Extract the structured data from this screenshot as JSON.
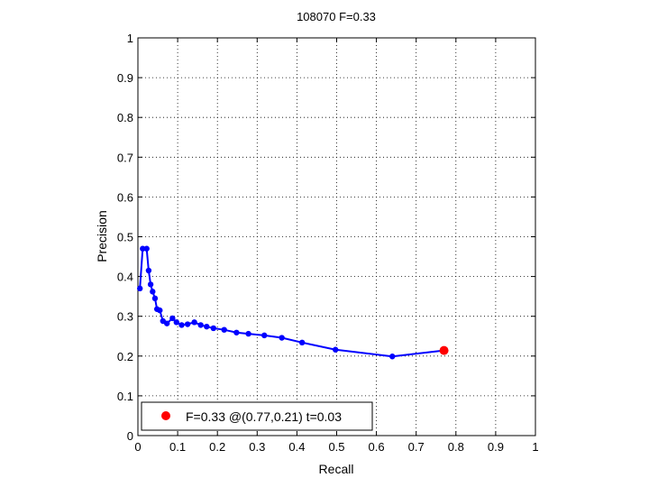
{
  "chart_data": {
    "type": "line",
    "title": "108070 F=0.33",
    "xlabel": "Recall",
    "ylabel": "Precision",
    "xlim": [
      0,
      1
    ],
    "ylim": [
      0,
      1
    ],
    "grid": true,
    "x_ticks": [
      "0",
      "0.1",
      "0.2",
      "0.3",
      "0.4",
      "0.5",
      "0.6",
      "0.7",
      "0.8",
      "0.9",
      "1"
    ],
    "y_ticks": [
      "0",
      "0.1",
      "0.2",
      "0.3",
      "0.4",
      "0.5",
      "0.6",
      "0.7",
      "0.8",
      "0.9",
      "1"
    ],
    "series": [
      {
        "color": "#0000ff",
        "points": [
          [
            0.005,
            0.37
          ],
          [
            0.012,
            0.47
          ],
          [
            0.022,
            0.47
          ],
          [
            0.027,
            0.415
          ],
          [
            0.032,
            0.38
          ],
          [
            0.037,
            0.362
          ],
          [
            0.043,
            0.345
          ],
          [
            0.048,
            0.318
          ],
          [
            0.055,
            0.315
          ],
          [
            0.063,
            0.288
          ],
          [
            0.073,
            0.282
          ],
          [
            0.087,
            0.295
          ],
          [
            0.097,
            0.285
          ],
          [
            0.11,
            0.278
          ],
          [
            0.125,
            0.28
          ],
          [
            0.142,
            0.285
          ],
          [
            0.158,
            0.278
          ],
          [
            0.173,
            0.274
          ],
          [
            0.19,
            0.27
          ],
          [
            0.217,
            0.266
          ],
          [
            0.248,
            0.259
          ],
          [
            0.278,
            0.256
          ],
          [
            0.318,
            0.252
          ],
          [
            0.362,
            0.246
          ],
          [
            0.413,
            0.234
          ],
          [
            0.497,
            0.216
          ],
          [
            0.64,
            0.199
          ],
          [
            0.77,
            0.214
          ]
        ]
      }
    ],
    "highlight": {
      "x": 0.77,
      "y": 0.214,
      "color": "#ff0000"
    },
    "legend": {
      "label": "F=0.33 @(0.77,0.21) t=0.03",
      "position": "bottom-left"
    }
  }
}
